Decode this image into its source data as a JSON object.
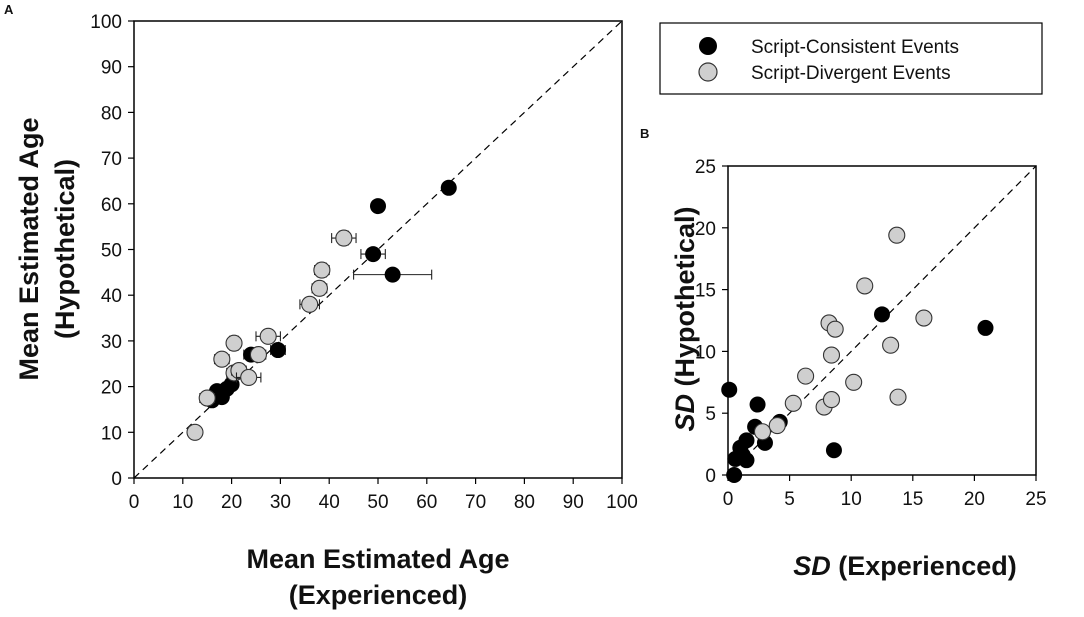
{
  "colors": {
    "consistent": "#000000",
    "divergent": "#cfcfcf",
    "axis": "#000000",
    "divergent_stroke": "#333333"
  },
  "legend": {
    "items": [
      {
        "label": "Script-Consistent Events",
        "series": "consistent"
      },
      {
        "label": "Script-Divergent Events",
        "series": "divergent"
      }
    ]
  },
  "chart_data": [
    {
      "type": "scatter",
      "panel_label": "A",
      "xlabel_line1": "Mean Estimated Age",
      "xlabel_line2": "(Experienced)",
      "ylabel_line1": "Mean Estimated Age",
      "ylabel_line2": "(Hypothetical)",
      "xlim": [
        0,
        100
      ],
      "ylim": [
        0,
        100
      ],
      "xticks": [
        0,
        10,
        20,
        30,
        40,
        50,
        60,
        70,
        80,
        90,
        100
      ],
      "yticks": [
        0,
        10,
        20,
        30,
        40,
        50,
        60,
        70,
        80,
        90,
        100
      ],
      "reference_line": "y = x (dashed)",
      "series": [
        {
          "name": "Script-Consistent Events",
          "key": "consistent",
          "points": [
            {
              "x": 16.0,
              "y": 17.0,
              "ex": 1.0,
              "ey": 1.0
            },
            {
              "x": 17.0,
              "y": 19.0,
              "ex": 1.2,
              "ey": 1.0
            },
            {
              "x": 18.0,
              "y": 17.7,
              "ex": 1.0,
              "ey": 1.0
            },
            {
              "x": 19.0,
              "y": 19.5,
              "ex": 1.0,
              "ey": 1.0
            },
            {
              "x": 20.0,
              "y": 20.5,
              "ex": 1.0,
              "ey": 1.0
            },
            {
              "x": 24.0,
              "y": 27.0,
              "ex": 1.5,
              "ey": 1.0
            },
            {
              "x": 29.5,
              "y": 28.0,
              "ex": 1.5,
              "ey": 1.0
            },
            {
              "x": 49.0,
              "y": 49.0,
              "ex": 2.5,
              "ey": 1.0
            },
            {
              "x": 50.0,
              "y": 59.5,
              "ex": 1.0,
              "ey": 1.0
            },
            {
              "x": 53.0,
              "y": 44.5,
              "ex": 8.0,
              "ey": 1.0
            },
            {
              "x": 64.5,
              "y": 63.5,
              "ex": 1.0,
              "ey": 1.0
            }
          ]
        },
        {
          "name": "Script-Divergent Events",
          "key": "divergent",
          "points": [
            {
              "x": 12.5,
              "y": 10.0,
              "ex": 0.8,
              "ey": 0.8
            },
            {
              "x": 15.0,
              "y": 17.5,
              "ex": 1.5,
              "ey": 1.2
            },
            {
              "x": 18.0,
              "y": 26.0,
              "ex": 1.5,
              "ey": 1.2
            },
            {
              "x": 20.5,
              "y": 29.5,
              "ex": 1.3,
              "ey": 1.5
            },
            {
              "x": 20.5,
              "y": 23.0,
              "ex": 1.5,
              "ey": 1.2
            },
            {
              "x": 21.5,
              "y": 23.5,
              "ex": 1.5,
              "ey": 1.2
            },
            {
              "x": 23.5,
              "y": 22.0,
              "ex": 2.5,
              "ey": 1.2
            },
            {
              "x": 25.5,
              "y": 27.0,
              "ex": 1.5,
              "ey": 1.2
            },
            {
              "x": 27.5,
              "y": 31.0,
              "ex": 2.5,
              "ey": 1.2
            },
            {
              "x": 36.0,
              "y": 38.0,
              "ex": 2.0,
              "ey": 1.2
            },
            {
              "x": 38.0,
              "y": 41.5,
              "ex": 1.5,
              "ey": 1.5
            },
            {
              "x": 38.5,
              "y": 45.5,
              "ex": 1.5,
              "ey": 1.5
            },
            {
              "x": 43.0,
              "y": 52.5,
              "ex": 2.5,
              "ey": 1.5
            }
          ]
        }
      ]
    },
    {
      "type": "scatter",
      "panel_label": "B",
      "xlabel_italic": "SD",
      "xlabel_rest": " (Experienced)",
      "ylabel_italic": "SD",
      "ylabel_rest": " (Hypothetical)",
      "xlim": [
        0,
        25
      ],
      "ylim": [
        0,
        25
      ],
      "xticks": [
        0,
        5,
        10,
        15,
        20,
        25
      ],
      "yticks": [
        0,
        5,
        10,
        15,
        20,
        25
      ],
      "reference_line": "y = x (dashed)",
      "series": [
        {
          "name": "Script-Consistent Events",
          "key": "consistent",
          "points": [
            {
              "x": 0.1,
              "y": 6.9
            },
            {
              "x": 0.5,
              "y": 0.0
            },
            {
              "x": 0.6,
              "y": 1.3
            },
            {
              "x": 1.0,
              "y": 2.2
            },
            {
              "x": 1.2,
              "y": 1.6
            },
            {
              "x": 1.5,
              "y": 1.2
            },
            {
              "x": 1.5,
              "y": 2.8
            },
            {
              "x": 2.2,
              "y": 3.9
            },
            {
              "x": 2.4,
              "y": 5.7
            },
            {
              "x": 3.0,
              "y": 2.6
            },
            {
              "x": 4.2,
              "y": 4.3
            },
            {
              "x": 8.6,
              "y": 2.0
            },
            {
              "x": 12.5,
              "y": 13.0
            },
            {
              "x": 20.9,
              "y": 11.9
            }
          ]
        },
        {
          "name": "Script-Divergent Events",
          "key": "divergent",
          "points": [
            {
              "x": 2.8,
              "y": 3.5
            },
            {
              "x": 4.0,
              "y": 4.0
            },
            {
              "x": 5.3,
              "y": 5.8
            },
            {
              "x": 6.3,
              "y": 8.0
            },
            {
              "x": 7.8,
              "y": 5.5
            },
            {
              "x": 8.2,
              "y": 12.3
            },
            {
              "x": 8.4,
              "y": 9.7
            },
            {
              "x": 8.4,
              "y": 6.1
            },
            {
              "x": 8.7,
              "y": 11.8
            },
            {
              "x": 10.2,
              "y": 7.5
            },
            {
              "x": 11.1,
              "y": 15.3
            },
            {
              "x": 13.2,
              "y": 10.5
            },
            {
              "x": 13.7,
              "y": 19.4
            },
            {
              "x": 13.8,
              "y": 6.3
            },
            {
              "x": 15.9,
              "y": 12.7
            }
          ]
        }
      ]
    }
  ]
}
